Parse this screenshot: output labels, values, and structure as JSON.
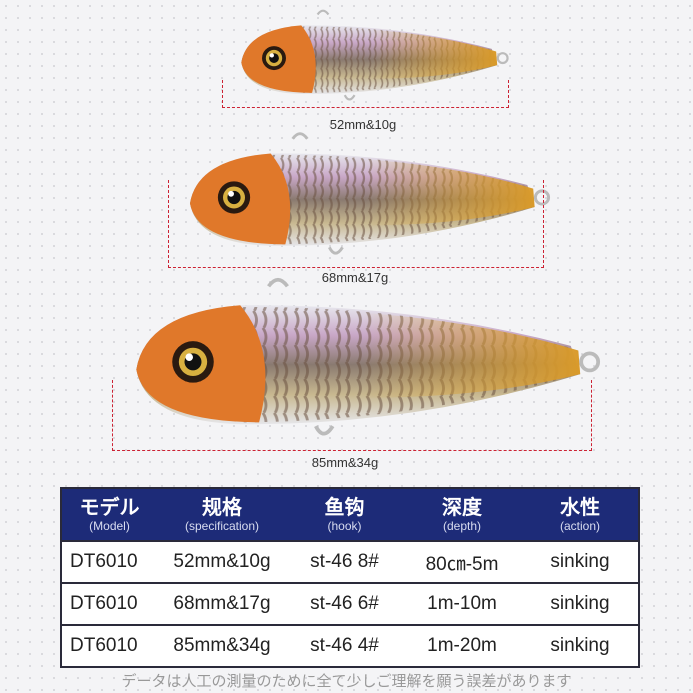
{
  "lures": [
    {
      "label": "52mm&10g"
    },
    {
      "label": "68mm&17g"
    },
    {
      "label": "85mm&34g"
    }
  ],
  "colors": {
    "header": "#1d2b78",
    "head": "#e0782a",
    "belly": "#d9a53a",
    "dim_line": "#cc2233"
  },
  "table": {
    "headers": [
      {
        "cn": "モデル",
        "en": "(Model)"
      },
      {
        "cn": "规格",
        "en": "(specification)"
      },
      {
        "cn": "鱼钩",
        "en": "(hook)"
      },
      {
        "cn": "深度",
        "en": "(depth)"
      },
      {
        "cn": "水性",
        "en": "(action)"
      }
    ],
    "rows": [
      [
        "DT6010",
        "52mm&10g",
        "st-46 8#",
        "80㎝-5m",
        "sinking"
      ],
      [
        "DT6010",
        "68mm&17g",
        "st-46 6#",
        "1m-10m",
        "sinking"
      ],
      [
        "DT6010",
        "85mm&34g",
        "st-46 4#",
        "1m-20m",
        "sinking"
      ]
    ]
  },
  "footnote": "データは人工の測量のために全て少しご理解を願う誤差があります"
}
